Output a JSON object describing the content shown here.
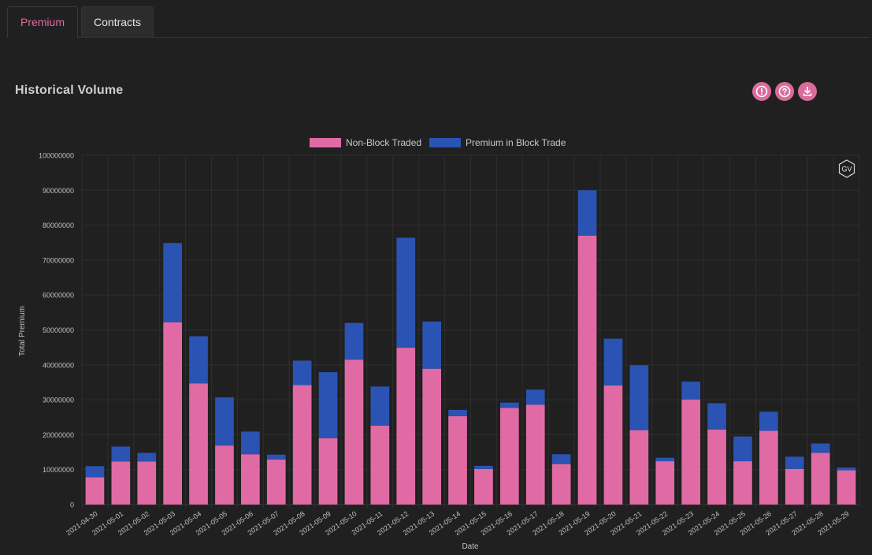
{
  "tabs": [
    {
      "label": "Premium",
      "active": true
    },
    {
      "label": "Contracts",
      "active": false
    }
  ],
  "section": {
    "title": "Historical Volume"
  },
  "toolbar_icons": [
    "info-icon",
    "help-icon",
    "download-icon"
  ],
  "colors": {
    "accent": "#e06c9f",
    "non_block": "#e06ba4",
    "block": "#2a53b3",
    "grid": "#2e2e2e"
  },
  "badge": {
    "label": "GV"
  },
  "chart_data": {
    "type": "bar",
    "stacked": true,
    "xlabel": "Date",
    "ylabel": "Total Premium",
    "ylim": [
      0,
      100000000
    ],
    "yticks": [
      0,
      10000000,
      20000000,
      30000000,
      40000000,
      50000000,
      60000000,
      70000000,
      80000000,
      90000000,
      100000000
    ],
    "grid": true,
    "legend_position": "top-center",
    "categories": [
      "2021-04-30",
      "2021-05-01",
      "2021-05-02",
      "2021-05-03",
      "2021-05-04",
      "2021-05-05",
      "2021-05-06",
      "2021-05-07",
      "2021-05-08",
      "2021-05-09",
      "2021-05-10",
      "2021-05-11",
      "2021-05-12",
      "2021-05-13",
      "2021-05-14",
      "2021-05-15",
      "2021-05-16",
      "2021-05-17",
      "2021-05-18",
      "2021-05-19",
      "2021-05-20",
      "2021-05-21",
      "2021-05-22",
      "2021-05-23",
      "2021-05-24",
      "2021-05-25",
      "2021-05-26",
      "2021-05-27",
      "2021-05-28",
      "2021-05-29"
    ],
    "series": [
      {
        "name": "Non-Block Traded",
        "color": "#e06ba4",
        "values": [
          7800000,
          12300000,
          12300000,
          52200000,
          34700000,
          16900000,
          14400000,
          12900000,
          34200000,
          19000000,
          41500000,
          22600000,
          44900000,
          38900000,
          25300000,
          10200000,
          27700000,
          28600000,
          11600000,
          77000000,
          34100000,
          21300000,
          12400000,
          30100000,
          21500000,
          12400000,
          21100000,
          10200000,
          14800000,
          9800000
        ]
      },
      {
        "name": "Premium in Block Trade",
        "color": "#2a53b3",
        "values": [
          3200000,
          4300000,
          2500000,
          22700000,
          13500000,
          13800000,
          6500000,
          1400000,
          7000000,
          18900000,
          10500000,
          11200000,
          31500000,
          13500000,
          1800000,
          900000,
          1500000,
          4300000,
          2800000,
          13000000,
          13400000,
          18600000,
          1000000,
          5100000,
          7500000,
          7100000,
          5500000,
          3500000,
          2700000,
          800000
        ]
      }
    ]
  }
}
